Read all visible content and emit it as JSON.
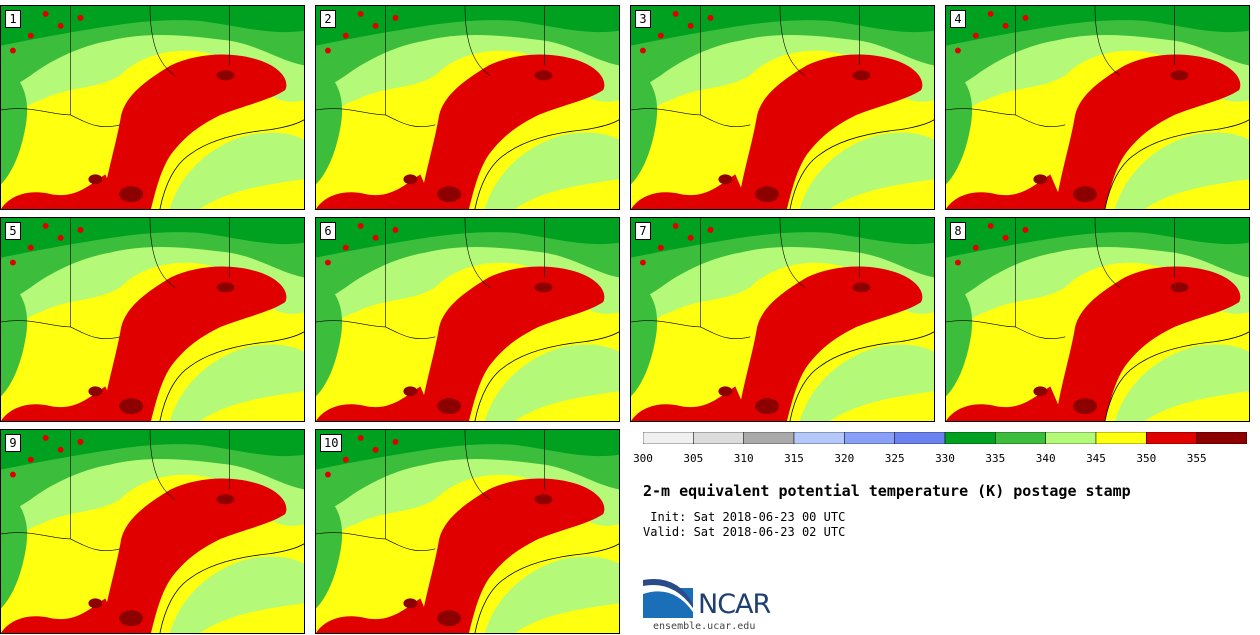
{
  "panels": [
    {
      "label": "1"
    },
    {
      "label": "2"
    },
    {
      "label": "3"
    },
    {
      "label": "4"
    },
    {
      "label": "5"
    },
    {
      "label": "6"
    },
    {
      "label": "7"
    },
    {
      "label": "8"
    },
    {
      "label": "9"
    },
    {
      "label": "10"
    }
  ],
  "colorbar": {
    "colors": [
      "#f0f0f0",
      "#dcdcdc",
      "#aaaaaa",
      "#b4c8fa",
      "#88a0f8",
      "#6a82f0",
      "#00a020",
      "#3cbe3c",
      "#b4fa78",
      "#ffff10",
      "#e10000",
      "#8c0000"
    ],
    "ticks": [
      "300",
      "305",
      "310",
      "315",
      "320",
      "325",
      "330",
      "335",
      "340",
      "345",
      "350",
      "355"
    ]
  },
  "title": "2-m equivalent potential temperature (K) postage stamp",
  "init": " Init: Sat 2018-06-23 00 UTC",
  "valid": "Valid: Sat 2018-06-23 02 UTC",
  "logo": {
    "text": "NCAR",
    "site": "ensemble.ucar.edu"
  },
  "colors": {
    "dark_green": "#00a020",
    "mid_green": "#3cbe3c",
    "light_green": "#b4fa78",
    "yellow": "#ffff10",
    "red": "#e10000",
    "dark_red": "#8c0000"
  }
}
